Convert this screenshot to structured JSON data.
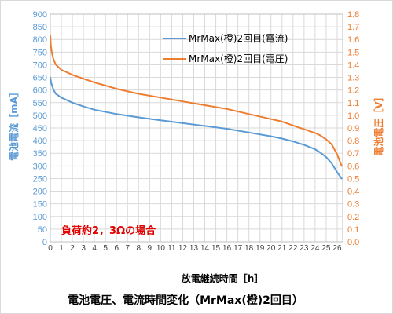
{
  "chart_data": {
    "type": "line",
    "title": "電池電圧、電流時間変化（MrMax(橙)2回目）",
    "xlabel": "放電継続時間［h］",
    "ylabel_left": "電池電流［mA］",
    "ylabel_right": "電池電圧［V］",
    "xlim": [
      0,
      26.5
    ],
    "ylim_left": [
      0,
      900
    ],
    "ylim_right": [
      0,
      1.8
    ],
    "x_ticks": [
      "0",
      "1",
      "2",
      "3",
      "4",
      "5",
      "6",
      "7",
      "8",
      "9",
      "10",
      "11",
      "12",
      "13",
      "14",
      "15",
      "16",
      "17",
      "18",
      "19",
      "20",
      "21",
      "22",
      "23",
      "24",
      "25",
      "26"
    ],
    "y_left_ticks": [
      "0",
      "50",
      "100",
      "150",
      "200",
      "250",
      "300",
      "350",
      "400",
      "450",
      "500",
      "550",
      "600",
      "650",
      "700",
      "750",
      "800",
      "850",
      "900"
    ],
    "y_right_ticks": [
      "0.0",
      "0.1",
      "0.2",
      "0.3",
      "0.4",
      "0.5",
      "0.6",
      "0.7",
      "0.8",
      "0.9",
      "1.0",
      "1.1",
      "1.2",
      "1.3",
      "1.4",
      "1.5",
      "1.6",
      "1.7",
      "1.8"
    ],
    "grid": true,
    "legend_position": "top-right",
    "annotation": "負荷約2，3Ωの場合",
    "series": [
      {
        "name": "MrMax(橙)2回目(電流)",
        "axis": "left",
        "color": "#5b9bd5",
        "x": [
          0,
          0.1,
          0.3,
          0.5,
          1,
          2,
          3,
          4,
          6,
          8,
          10,
          12,
          14,
          16,
          18,
          20,
          21,
          22,
          23,
          24,
          24.5,
          25,
          25.5,
          26,
          26.4
        ],
        "y": [
          650,
          625,
          600,
          585,
          570,
          550,
          535,
          522,
          505,
          492,
          480,
          469,
          458,
          447,
          432,
          417,
          408,
          397,
          383,
          366,
          352,
          335,
          310,
          275,
          250
        ]
      },
      {
        "name": "MrMax(橙)2回目(電圧)",
        "axis": "right",
        "color": "#ed7d31",
        "x": [
          0,
          0.05,
          0.15,
          0.3,
          0.5,
          1,
          2,
          3,
          4,
          6,
          8,
          10,
          12,
          14,
          16,
          18,
          20,
          21,
          22,
          23,
          24,
          24.5,
          25,
          25.5,
          26,
          26.4
        ],
        "y": [
          1.63,
          1.55,
          1.49,
          1.44,
          1.4,
          1.36,
          1.32,
          1.29,
          1.26,
          1.21,
          1.17,
          1.14,
          1.11,
          1.08,
          1.05,
          1.01,
          0.97,
          0.95,
          0.92,
          0.89,
          0.86,
          0.84,
          0.81,
          0.77,
          0.69,
          0.6
        ]
      }
    ]
  }
}
